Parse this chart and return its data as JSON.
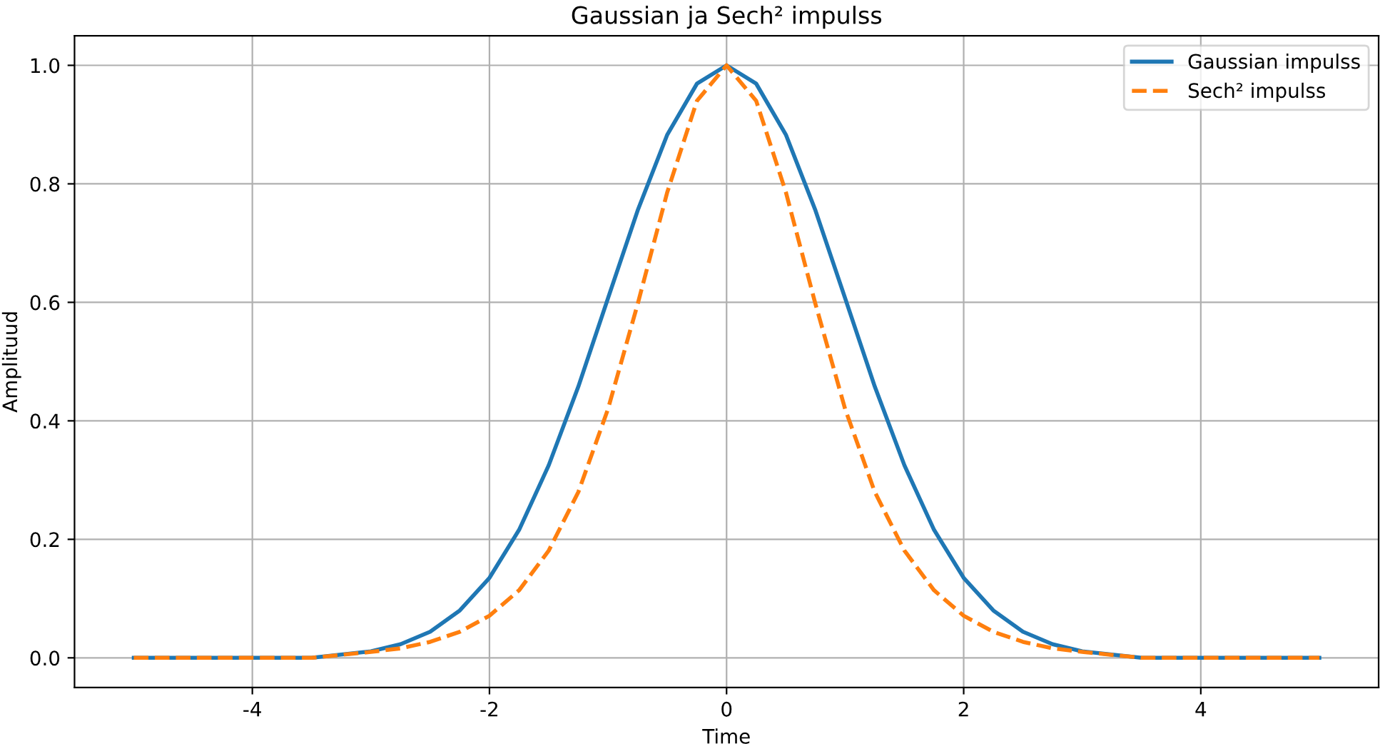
{
  "chart_data": {
    "type": "line",
    "title": "Gaussian ja Sech² impulss",
    "xlabel": "Time",
    "ylabel": "Amplituud",
    "x": [
      -5,
      -4.5,
      -4,
      -3.5,
      -3,
      -2.75,
      -2.5,
      -2.25,
      -2,
      -1.75,
      -1.5,
      -1.25,
      -1,
      -0.75,
      -0.5,
      -0.25,
      0,
      0.25,
      0.5,
      0.75,
      1,
      1.25,
      1.5,
      1.75,
      2,
      2.25,
      2.5,
      2.75,
      3,
      3.5,
      4,
      4.5,
      5
    ],
    "series": [
      {
        "name": "Gaussian impulss",
        "color": "#1f77b4",
        "line_style": "solid",
        "values": [
          0,
          0,
          0,
          0,
          0.011,
          0.023,
          0.044,
          0.08,
          0.135,
          0.216,
          0.325,
          0.458,
          0.607,
          0.755,
          0.883,
          0.969,
          1,
          0.969,
          0.883,
          0.755,
          0.607,
          0.458,
          0.325,
          0.216,
          0.135,
          0.08,
          0.044,
          0.023,
          0.011,
          0,
          0,
          0,
          0
        ]
      },
      {
        "name": "Sech² impulss",
        "color": "#ff7f0e",
        "line_style": "dashed",
        "values": [
          0,
          0,
          0,
          0,
          0.01,
          0.016,
          0.027,
          0.044,
          0.071,
          0.114,
          0.181,
          0.28,
          0.42,
          0.597,
          0.786,
          0.94,
          1,
          0.94,
          0.786,
          0.597,
          0.42,
          0.28,
          0.181,
          0.114,
          0.071,
          0.044,
          0.027,
          0.016,
          0.01,
          0,
          0,
          0,
          0
        ]
      }
    ],
    "xlim": [
      -5.5,
      5.5
    ],
    "ylim": [
      -0.05,
      1.05
    ],
    "xticks": [
      -4,
      -2,
      0,
      2,
      4
    ],
    "yticks": [
      {
        "value": 0,
        "label": "0.0"
      },
      {
        "value": 0.2,
        "label": "0.2"
      },
      {
        "value": 0.4,
        "label": "0.4"
      },
      {
        "value": 0.6,
        "label": "0.6"
      },
      {
        "value": 0.8,
        "label": "0.8"
      },
      {
        "value": 1,
        "label": "1.0"
      }
    ],
    "grid": true,
    "legend": "top right"
  }
}
